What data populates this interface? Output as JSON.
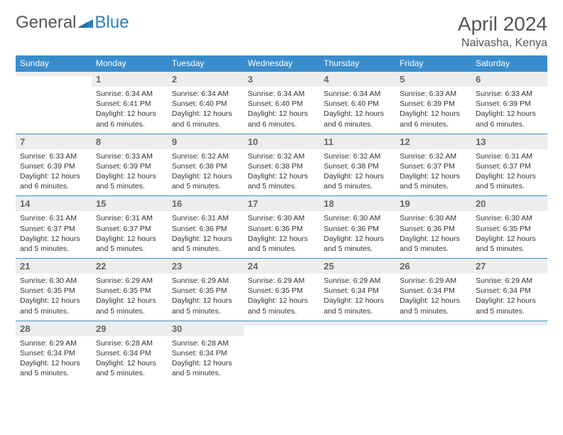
{
  "brand": {
    "general": "General",
    "blue": "Blue"
  },
  "title": "April 2024",
  "location": "Naivasha, Kenya",
  "colors": {
    "header_bg": "#3a8dcd",
    "daynum_bg": "#eceeee",
    "brand_blue": "#2a7fbf",
    "text": "#333333",
    "title_text": "#555555",
    "rule": "#3a8dcd"
  },
  "weekdays": [
    "Sunday",
    "Monday",
    "Tuesday",
    "Wednesday",
    "Thursday",
    "Friday",
    "Saturday"
  ],
  "weeks": [
    [
      {
        "day": "",
        "sunrise": "",
        "sunset": "",
        "daylight": ""
      },
      {
        "day": "1",
        "sunrise": "Sunrise: 6:34 AM",
        "sunset": "Sunset: 6:41 PM",
        "daylight": "Daylight: 12 hours and 6 minutes."
      },
      {
        "day": "2",
        "sunrise": "Sunrise: 6:34 AM",
        "sunset": "Sunset: 6:40 PM",
        "daylight": "Daylight: 12 hours and 6 minutes."
      },
      {
        "day": "3",
        "sunrise": "Sunrise: 6:34 AM",
        "sunset": "Sunset: 6:40 PM",
        "daylight": "Daylight: 12 hours and 6 minutes."
      },
      {
        "day": "4",
        "sunrise": "Sunrise: 6:34 AM",
        "sunset": "Sunset: 6:40 PM",
        "daylight": "Daylight: 12 hours and 6 minutes."
      },
      {
        "day": "5",
        "sunrise": "Sunrise: 6:33 AM",
        "sunset": "Sunset: 6:39 PM",
        "daylight": "Daylight: 12 hours and 6 minutes."
      },
      {
        "day": "6",
        "sunrise": "Sunrise: 6:33 AM",
        "sunset": "Sunset: 6:39 PM",
        "daylight": "Daylight: 12 hours and 6 minutes."
      }
    ],
    [
      {
        "day": "7",
        "sunrise": "Sunrise: 6:33 AM",
        "sunset": "Sunset: 6:39 PM",
        "daylight": "Daylight: 12 hours and 6 minutes."
      },
      {
        "day": "8",
        "sunrise": "Sunrise: 6:33 AM",
        "sunset": "Sunset: 6:39 PM",
        "daylight": "Daylight: 12 hours and 5 minutes."
      },
      {
        "day": "9",
        "sunrise": "Sunrise: 6:32 AM",
        "sunset": "Sunset: 6:38 PM",
        "daylight": "Daylight: 12 hours and 5 minutes."
      },
      {
        "day": "10",
        "sunrise": "Sunrise: 6:32 AM",
        "sunset": "Sunset: 6:38 PM",
        "daylight": "Daylight: 12 hours and 5 minutes."
      },
      {
        "day": "11",
        "sunrise": "Sunrise: 6:32 AM",
        "sunset": "Sunset: 6:38 PM",
        "daylight": "Daylight: 12 hours and 5 minutes."
      },
      {
        "day": "12",
        "sunrise": "Sunrise: 6:32 AM",
        "sunset": "Sunset: 6:37 PM",
        "daylight": "Daylight: 12 hours and 5 minutes."
      },
      {
        "day": "13",
        "sunrise": "Sunrise: 6:31 AM",
        "sunset": "Sunset: 6:37 PM",
        "daylight": "Daylight: 12 hours and 5 minutes."
      }
    ],
    [
      {
        "day": "14",
        "sunrise": "Sunrise: 6:31 AM",
        "sunset": "Sunset: 6:37 PM",
        "daylight": "Daylight: 12 hours and 5 minutes."
      },
      {
        "day": "15",
        "sunrise": "Sunrise: 6:31 AM",
        "sunset": "Sunset: 6:37 PM",
        "daylight": "Daylight: 12 hours and 5 minutes."
      },
      {
        "day": "16",
        "sunrise": "Sunrise: 6:31 AM",
        "sunset": "Sunset: 6:36 PM",
        "daylight": "Daylight: 12 hours and 5 minutes."
      },
      {
        "day": "17",
        "sunrise": "Sunrise: 6:30 AM",
        "sunset": "Sunset: 6:36 PM",
        "daylight": "Daylight: 12 hours and 5 minutes."
      },
      {
        "day": "18",
        "sunrise": "Sunrise: 6:30 AM",
        "sunset": "Sunset: 6:36 PM",
        "daylight": "Daylight: 12 hours and 5 minutes."
      },
      {
        "day": "19",
        "sunrise": "Sunrise: 6:30 AM",
        "sunset": "Sunset: 6:36 PM",
        "daylight": "Daylight: 12 hours and 5 minutes."
      },
      {
        "day": "20",
        "sunrise": "Sunrise: 6:30 AM",
        "sunset": "Sunset: 6:35 PM",
        "daylight": "Daylight: 12 hours and 5 minutes."
      }
    ],
    [
      {
        "day": "21",
        "sunrise": "Sunrise: 6:30 AM",
        "sunset": "Sunset: 6:35 PM",
        "daylight": "Daylight: 12 hours and 5 minutes."
      },
      {
        "day": "22",
        "sunrise": "Sunrise: 6:29 AM",
        "sunset": "Sunset: 6:35 PM",
        "daylight": "Daylight: 12 hours and 5 minutes."
      },
      {
        "day": "23",
        "sunrise": "Sunrise: 6:29 AM",
        "sunset": "Sunset: 6:35 PM",
        "daylight": "Daylight: 12 hours and 5 minutes."
      },
      {
        "day": "24",
        "sunrise": "Sunrise: 6:29 AM",
        "sunset": "Sunset: 6:35 PM",
        "daylight": "Daylight: 12 hours and 5 minutes."
      },
      {
        "day": "25",
        "sunrise": "Sunrise: 6:29 AM",
        "sunset": "Sunset: 6:34 PM",
        "daylight": "Daylight: 12 hours and 5 minutes."
      },
      {
        "day": "26",
        "sunrise": "Sunrise: 6:29 AM",
        "sunset": "Sunset: 6:34 PM",
        "daylight": "Daylight: 12 hours and 5 minutes."
      },
      {
        "day": "27",
        "sunrise": "Sunrise: 6:29 AM",
        "sunset": "Sunset: 6:34 PM",
        "daylight": "Daylight: 12 hours and 5 minutes."
      }
    ],
    [
      {
        "day": "28",
        "sunrise": "Sunrise: 6:29 AM",
        "sunset": "Sunset: 6:34 PM",
        "daylight": "Daylight: 12 hours and 5 minutes."
      },
      {
        "day": "29",
        "sunrise": "Sunrise: 6:28 AM",
        "sunset": "Sunset: 6:34 PM",
        "daylight": "Daylight: 12 hours and 5 minutes."
      },
      {
        "day": "30",
        "sunrise": "Sunrise: 6:28 AM",
        "sunset": "Sunset: 6:34 PM",
        "daylight": "Daylight: 12 hours and 5 minutes."
      },
      {
        "day": "",
        "sunrise": "",
        "sunset": "",
        "daylight": ""
      },
      {
        "day": "",
        "sunrise": "",
        "sunset": "",
        "daylight": ""
      },
      {
        "day": "",
        "sunrise": "",
        "sunset": "",
        "daylight": ""
      },
      {
        "day": "",
        "sunrise": "",
        "sunset": "",
        "daylight": ""
      }
    ]
  ]
}
